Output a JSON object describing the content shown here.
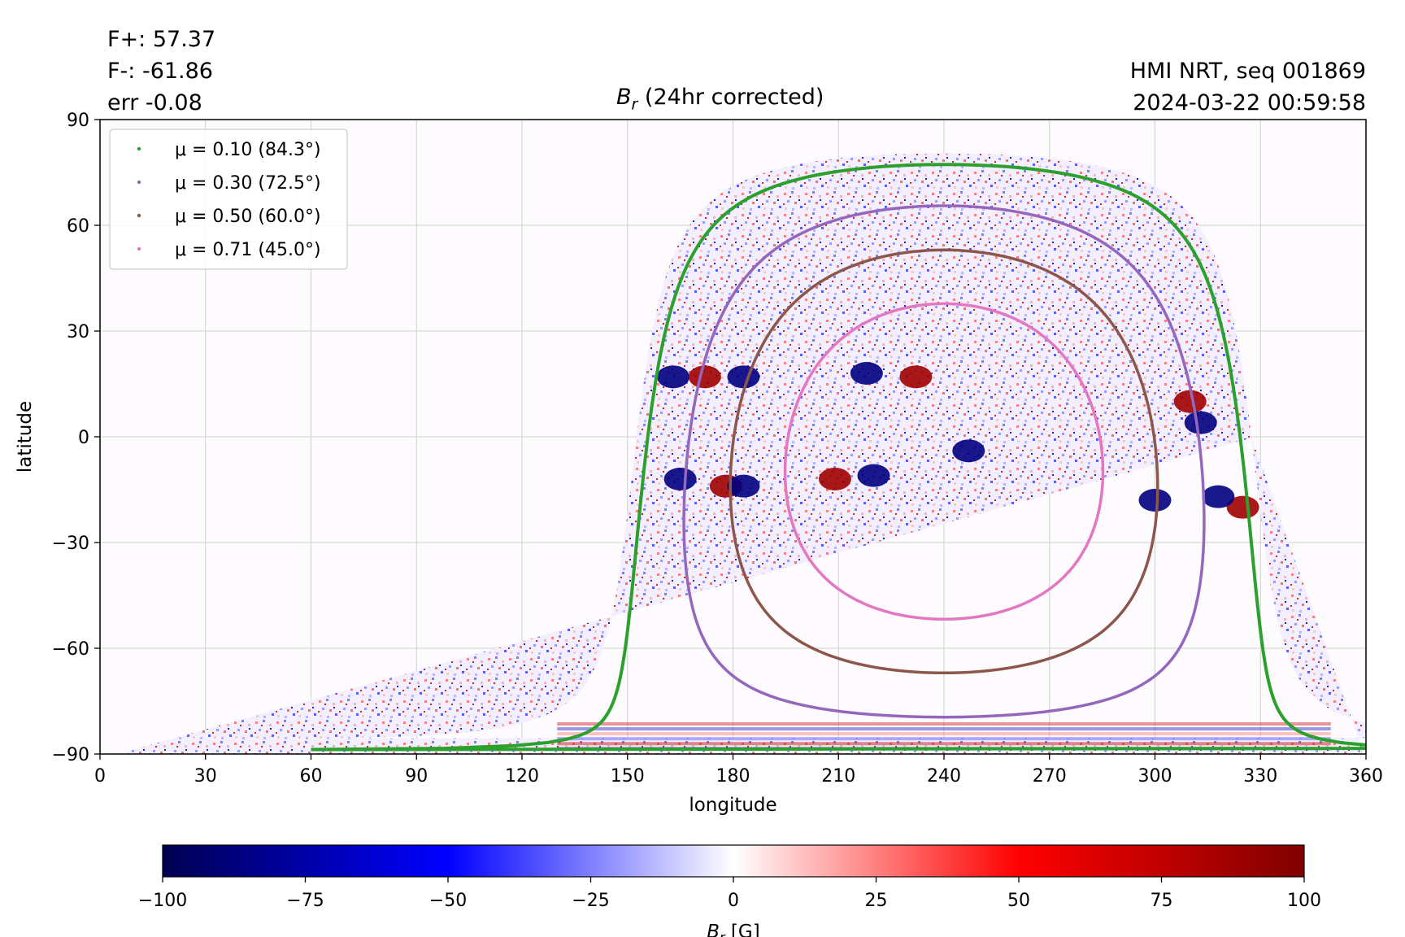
{
  "stats": {
    "fplus": "F+: 57.37",
    "fminus": "F-: -61.86",
    "err": "err -0.08"
  },
  "source": {
    "line1": "HMI NRT, seq 001869",
    "line2": "2024-03-22 00:59:58"
  },
  "chart_data": {
    "type": "heatmap",
    "title_var": "B",
    "title_sub": "r",
    "title_rest": " (24hr corrected)",
    "xlabel": "longitude",
    "ylabel": "latitude",
    "xlim": [
      0,
      360
    ],
    "ylim": [
      -90,
      90
    ],
    "xticks": [
      "0",
      "30",
      "60",
      "90",
      "120",
      "150",
      "180",
      "210",
      "240",
      "270",
      "300",
      "330",
      "360"
    ],
    "yticks": [
      "90",
      "60",
      "30",
      "0",
      "−30",
      "−60",
      "−90"
    ],
    "grid": true,
    "legend_position": "top-left",
    "disk_center_longitude": 240,
    "disk_center_latitude": -7,
    "series": [
      {
        "name": "μ = 0.10 (84.3°)",
        "mu": 0.1,
        "angle_deg": 84.3,
        "color": "#2ca02c"
      },
      {
        "name": "μ = 0.30 (72.5°)",
        "mu": 0.3,
        "angle_deg": 72.5,
        "color": "#9467bd"
      },
      {
        "name": "μ = 0.50 (60.0°)",
        "mu": 0.5,
        "angle_deg": 60.0,
        "color": "#8c564b"
      },
      {
        "name": "μ = 0.71 (45.0°)",
        "mu": 0.71,
        "angle_deg": 45.0,
        "color": "#e377c2"
      }
    ],
    "colorbar": {
      "label_var": "B",
      "label_sub": "r",
      "label_rest": " [G]",
      "range": [
        -100,
        100
      ],
      "ticks": [
        "−100",
        "−75",
        "−50",
        "−25",
        "0",
        "25",
        "50",
        "75",
        "100"
      ],
      "colors": [
        "#000050",
        "#0000ff",
        "#ffffff",
        "#ff0000",
        "#800000"
      ]
    },
    "active_regions": [
      {
        "lon": 163,
        "lat": 17,
        "polarity": "negative"
      },
      {
        "lon": 172,
        "lat": 17,
        "polarity": "positive"
      },
      {
        "lon": 183,
        "lat": 17,
        "polarity": "negative"
      },
      {
        "lon": 218,
        "lat": 18,
        "polarity": "negative"
      },
      {
        "lon": 232,
        "lat": 17,
        "polarity": "positive"
      },
      {
        "lon": 178,
        "lat": -14,
        "polarity": "positive"
      },
      {
        "lon": 183,
        "lat": -14,
        "polarity": "negative"
      },
      {
        "lon": 209,
        "lat": -12,
        "polarity": "positive"
      },
      {
        "lon": 220,
        "lat": -11,
        "polarity": "negative"
      },
      {
        "lon": 165,
        "lat": -12,
        "polarity": "negative"
      },
      {
        "lon": 310,
        "lat": 10,
        "polarity": "positive"
      },
      {
        "lon": 313,
        "lat": 4,
        "polarity": "negative"
      },
      {
        "lon": 300,
        "lat": -18,
        "polarity": "negative"
      },
      {
        "lon": 325,
        "lat": -20,
        "polarity": "positive"
      },
      {
        "lon": 318,
        "lat": -17,
        "polarity": "negative"
      },
      {
        "lon": 247,
        "lat": -4,
        "polarity": "negative"
      }
    ]
  }
}
